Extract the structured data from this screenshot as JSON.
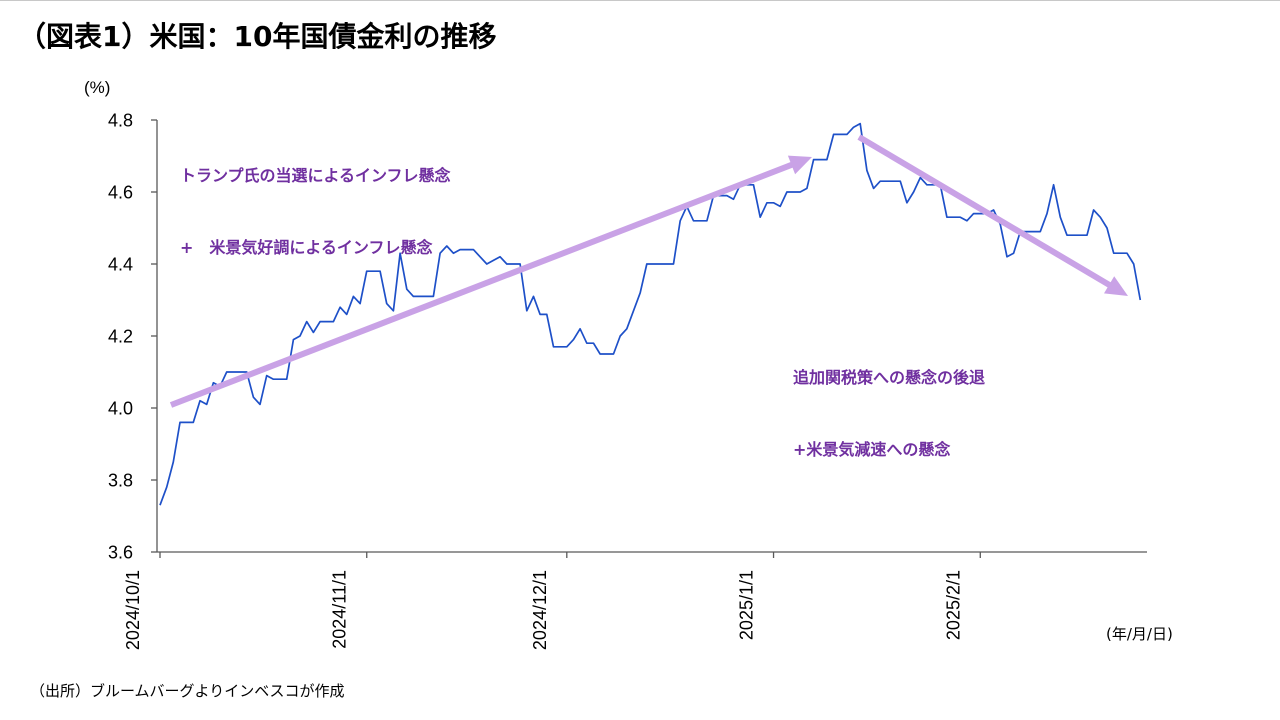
{
  "chart_data": {
    "type": "line",
    "title": "（図表1）米国：10年国債金利の推移",
    "ylabel": "(%)",
    "xlabel": "(年/月/日)",
    "source": "（出所）ブルームバーグよりインベスコが作成",
    "ylim": [
      3.6,
      4.8
    ],
    "yticks": [
      "3.6",
      "3.8",
      "4.0",
      "4.2",
      "4.4",
      "4.6",
      "4.8"
    ],
    "xlim": [
      "2024/10/1",
      "2025/2/26"
    ],
    "xticks": [
      "2024/10/1",
      "2024/11/1",
      "2024/12/1",
      "2025/1/1",
      "2025/2/1"
    ],
    "grid": false,
    "legend": "none",
    "colors": {
      "axis": "#595959",
      "annotation_text": "#7030a0",
      "arrow": "#c9a2e6"
    },
    "series": [
      {
        "color": "#1e50c8",
        "points": [
          [
            "2024/10/1",
            3.73
          ],
          [
            "2024/10/2",
            3.78
          ],
          [
            "2024/10/3",
            3.85
          ],
          [
            "2024/10/4",
            3.96
          ],
          [
            "2024/10/7",
            4.02
          ],
          [
            "2024/10/8",
            4.01
          ],
          [
            "2024/10/9",
            4.07
          ],
          [
            "2024/10/10",
            4.06
          ],
          [
            "2024/10/11",
            4.1
          ],
          [
            "2024/10/15",
            4.03
          ],
          [
            "2024/10/16",
            4.01
          ],
          [
            "2024/10/17",
            4.09
          ],
          [
            "2024/10/18",
            4.08
          ],
          [
            "2024/10/21",
            4.19
          ],
          [
            "2024/10/22",
            4.2
          ],
          [
            "2024/10/23",
            4.24
          ],
          [
            "2024/10/24",
            4.21
          ],
          [
            "2024/10/25",
            4.24
          ],
          [
            "2024/10/28",
            4.28
          ],
          [
            "2024/10/29",
            4.26
          ],
          [
            "2024/10/30",
            4.31
          ],
          [
            "2024/10/31",
            4.29
          ],
          [
            "2024/11/1",
            4.38
          ],
          [
            "2024/11/4",
            4.29
          ],
          [
            "2024/11/5",
            4.27
          ],
          [
            "2024/11/6",
            4.43
          ],
          [
            "2024/11/7",
            4.33
          ],
          [
            "2024/11/8",
            4.31
          ],
          [
            "2024/11/12",
            4.43
          ],
          [
            "2024/11/13",
            4.45
          ],
          [
            "2024/11/14",
            4.43
          ],
          [
            "2024/11/15",
            4.44
          ],
          [
            "2024/11/18",
            4.42
          ],
          [
            "2024/11/19",
            4.4
          ],
          [
            "2024/11/20",
            4.41
          ],
          [
            "2024/11/21",
            4.42
          ],
          [
            "2024/11/22",
            4.4
          ],
          [
            "2024/11/25",
            4.27
          ],
          [
            "2024/11/26",
            4.31
          ],
          [
            "2024/11/27",
            4.26
          ],
          [
            "2024/11/29",
            4.17
          ],
          [
            "2024/12/2",
            4.19
          ],
          [
            "2024/12/3",
            4.22
          ],
          [
            "2024/12/4",
            4.18
          ],
          [
            "2024/12/5",
            4.18
          ],
          [
            "2024/12/6",
            4.15
          ],
          [
            "2024/12/9",
            4.2
          ],
          [
            "2024/12/10",
            4.22
          ],
          [
            "2024/12/11",
            4.27
          ],
          [
            "2024/12/12",
            4.32
          ],
          [
            "2024/12/13",
            4.4
          ],
          [
            "2024/12/16",
            4.4
          ],
          [
            "2024/12/17",
            4.4
          ],
          [
            "2024/12/18",
            4.52
          ],
          [
            "2024/12/19",
            4.56
          ],
          [
            "2024/12/20",
            4.52
          ],
          [
            "2024/12/23",
            4.59
          ],
          [
            "2024/12/24",
            4.59
          ],
          [
            "2024/12/26",
            4.58
          ],
          [
            "2024/12/27",
            4.62
          ],
          [
            "2024/12/30",
            4.53
          ],
          [
            "2024/12/31",
            4.57
          ],
          [
            "2025/1/2",
            4.56
          ],
          [
            "2025/1/3",
            4.6
          ],
          [
            "2025/1/6",
            4.61
          ],
          [
            "2025/1/7",
            4.69
          ],
          [
            "2025/1/8",
            4.69
          ],
          [
            "2025/1/10",
            4.76
          ],
          [
            "2025/1/13",
            4.78
          ],
          [
            "2025/1/14",
            4.79
          ],
          [
            "2025/1/15",
            4.66
          ],
          [
            "2025/1/16",
            4.61
          ],
          [
            "2025/1/17",
            4.63
          ],
          [
            "2025/1/21",
            4.57
          ],
          [
            "2025/1/22",
            4.6
          ],
          [
            "2025/1/23",
            4.64
          ],
          [
            "2025/1/24",
            4.62
          ],
          [
            "2025/1/27",
            4.53
          ],
          [
            "2025/1/28",
            4.53
          ],
          [
            "2025/1/29",
            4.53
          ],
          [
            "2025/1/30",
            4.52
          ],
          [
            "2025/1/31",
            4.54
          ],
          [
            "2025/2/3",
            4.55
          ],
          [
            "2025/2/4",
            4.51
          ],
          [
            "2025/2/5",
            4.42
          ],
          [
            "2025/2/6",
            4.43
          ],
          [
            "2025/2/7",
            4.49
          ],
          [
            "2025/2/10",
            4.49
          ],
          [
            "2025/2/11",
            4.54
          ],
          [
            "2025/2/12",
            4.62
          ],
          [
            "2025/2/13",
            4.53
          ],
          [
            "2025/2/14",
            4.48
          ],
          [
            "2025/2/18",
            4.55
          ],
          [
            "2025/2/19",
            4.53
          ],
          [
            "2025/2/20",
            4.5
          ],
          [
            "2025/2/21",
            4.43
          ],
          [
            "2025/2/24",
            4.4
          ],
          [
            "2025/2/25",
            4.3
          ]
        ]
      }
    ],
    "annotations": [
      {
        "lines": [
          "トランプ氏の当選によるインフレ懸念",
          "+　米景気好調によるインフレ懸念"
        ]
      },
      {
        "lines": [
          "追加関税策への懸念の後退",
          "+米景気減速への懸念"
        ]
      }
    ]
  }
}
